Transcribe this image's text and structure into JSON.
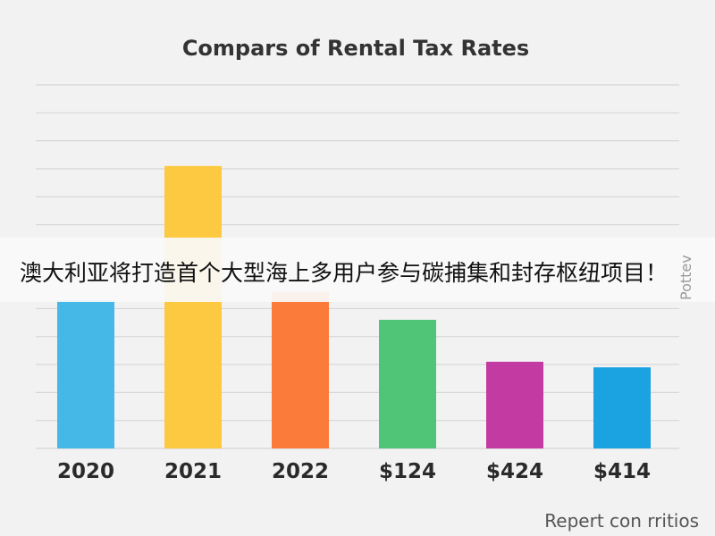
{
  "banner": {
    "text": "澳大利亚将打造首个大型海上多用户参与碳捕集和封存枢纽项目！"
  },
  "side_mark": "Pottev",
  "footer": "Repert con rritios",
  "chart_data": {
    "type": "bar",
    "title": "Compars of Rental Tax Rates",
    "categories": [
      "2020",
      "2021",
      "2022",
      "$124",
      "$424",
      "$414"
    ],
    "values": [
      26.5,
      50.5,
      28,
      23,
      15.5,
      14.5
    ],
    "colors": [
      "#45b8e8",
      "#fcc940",
      "#fb7b3a",
      "#50c477",
      "#c23aa2",
      "#1aa3e0"
    ],
    "ylim": [
      0,
      65
    ],
    "grid": true,
    "xlabel": "",
    "ylabel": ""
  }
}
